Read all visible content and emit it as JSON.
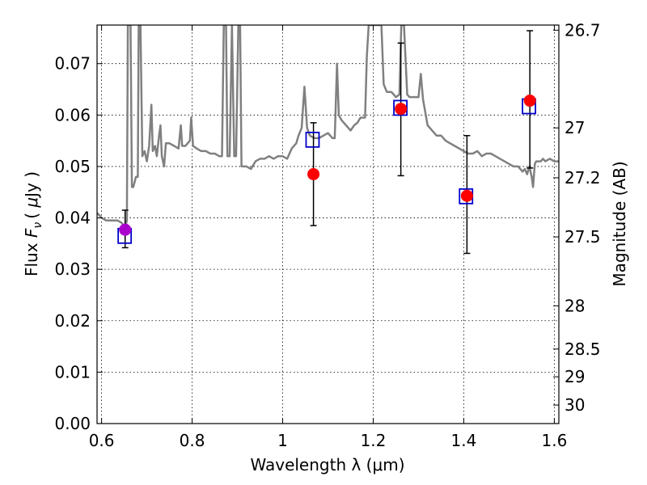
{
  "chart_data": {
    "type": "scatter",
    "xlabel": "Wavelength  λ (μm)",
    "ylabel": "Flux  Fν  ( μJy )",
    "ylabel_parts": {
      "prefix": "Flux ",
      "symbol": "F",
      "subscript": "ν",
      "unit_open": "( ",
      "unit_mu": "μ",
      "unit_rest": "Jy )"
    },
    "ylabel_right": "Magnitude (AB)",
    "xlim": [
      0.59,
      1.61
    ],
    "ylim": [
      0.0,
      0.0775
    ],
    "grid": true,
    "x_ticks": [
      {
        "value": 0.6,
        "label": ""
      },
      {
        "value": 0.8,
        "label": "0.8"
      },
      {
        "value": 1.0,
        "label": "1"
      },
      {
        "value": 1.2,
        "label": "1.2"
      },
      {
        "value": 1.4,
        "label": "1.4"
      },
      {
        "value": 1.6,
        "label": "1.6"
      }
    ],
    "x_tick_first_label": "0.6",
    "y_ticks": [
      "0.00",
      "0.01",
      "0.02",
      "0.03",
      "0.04",
      "0.05",
      "0.06",
      "0.07"
    ],
    "y_tick_values": [
      0.0,
      0.01,
      0.02,
      0.03,
      0.04,
      0.05,
      0.06,
      0.07
    ],
    "mag_ticks": [
      {
        "label": "26.7",
        "flux": 0.0765
      },
      {
        "label": "27",
        "flux": 0.0575
      },
      {
        "label": "27.2",
        "flux": 0.0478
      },
      {
        "label": "27.5",
        "flux": 0.0363
      },
      {
        "label": "28",
        "flux": 0.0229
      },
      {
        "label": "28.5",
        "flux": 0.0145
      },
      {
        "label": "29",
        "flux": 0.0091
      },
      {
        "label": "30",
        "flux": 0.0036
      }
    ],
    "colors": {
      "spectrum": "#808080",
      "observed": "#ff0000",
      "model": "#0000cc",
      "first_point": "#aa00cc",
      "errorbar": "#000000",
      "grid": "#000000"
    },
    "series": [
      {
        "kind": "template_spectrum",
        "points": [
          [
            0.59,
            0.041
          ],
          [
            0.6,
            0.04
          ],
          [
            0.61,
            0.0395
          ],
          [
            0.62,
            0.0395
          ],
          [
            0.635,
            0.0395
          ],
          [
            0.645,
            0.039
          ],
          [
            0.652,
            0.038
          ],
          [
            0.656,
            0.0395
          ],
          [
            0.658,
            0.0775
          ],
          [
            0.664,
            0.0775
          ],
          [
            0.667,
            0.046
          ],
          [
            0.67,
            0.046
          ],
          [
            0.673,
            0.047
          ],
          [
            0.676,
            0.048
          ],
          [
            0.68,
            0.048
          ],
          [
            0.682,
            0.0775
          ],
          [
            0.686,
            0.0775
          ],
          [
            0.69,
            0.052
          ],
          [
            0.695,
            0.053
          ],
          [
            0.7,
            0.051
          ],
          [
            0.705,
            0.054
          ],
          [
            0.71,
            0.062
          ],
          [
            0.713,
            0.053
          ],
          [
            0.718,
            0.054
          ],
          [
            0.722,
            0.052
          ],
          [
            0.727,
            0.056
          ],
          [
            0.73,
            0.058
          ],
          [
            0.733,
            0.052
          ],
          [
            0.738,
            0.05
          ],
          [
            0.742,
            0.0545
          ],
          [
            0.75,
            0.0545
          ],
          [
            0.76,
            0.054
          ],
          [
            0.77,
            0.0535
          ],
          [
            0.775,
            0.058
          ],
          [
            0.778,
            0.054
          ],
          [
            0.785,
            0.054
          ],
          [
            0.795,
            0.055
          ],
          [
            0.798,
            0.0595
          ],
          [
            0.802,
            0.054
          ],
          [
            0.81,
            0.0535
          ],
          [
            0.82,
            0.053
          ],
          [
            0.83,
            0.053
          ],
          [
            0.84,
            0.0525
          ],
          [
            0.85,
            0.0525
          ],
          [
            0.86,
            0.052
          ],
          [
            0.866,
            0.052
          ],
          [
            0.87,
            0.0775
          ],
          [
            0.875,
            0.0775
          ],
          [
            0.878,
            0.052
          ],
          [
            0.883,
            0.052
          ],
          [
            0.888,
            0.0775
          ],
          [
            0.893,
            0.052
          ],
          [
            0.897,
            0.052
          ],
          [
            0.902,
            0.0775
          ],
          [
            0.906,
            0.0775
          ],
          [
            0.909,
            0.05
          ],
          [
            0.92,
            0.05
          ],
          [
            0.93,
            0.0495
          ],
          [
            0.94,
            0.051
          ],
          [
            0.95,
            0.0515
          ],
          [
            0.96,
            0.0515
          ],
          [
            0.97,
            0.052
          ],
          [
            0.98,
            0.0515
          ],
          [
            0.99,
            0.052
          ],
          [
            1.0,
            0.052
          ],
          [
            1.01,
            0.0515
          ],
          [
            1.02,
            0.0535
          ],
          [
            1.03,
            0.0545
          ],
          [
            1.035,
            0.056
          ],
          [
            1.042,
            0.0575
          ],
          [
            1.048,
            0.0655
          ],
          [
            1.054,
            0.0575
          ],
          [
            1.06,
            0.056
          ],
          [
            1.07,
            0.0555
          ],
          [
            1.08,
            0.0555
          ],
          [
            1.09,
            0.056
          ],
          [
            1.1,
            0.0565
          ],
          [
            1.11,
            0.0555
          ],
          [
            1.115,
            0.0555
          ],
          [
            1.12,
            0.07
          ],
          [
            1.124,
            0.06
          ],
          [
            1.13,
            0.059
          ],
          [
            1.14,
            0.058
          ],
          [
            1.15,
            0.057
          ],
          [
            1.158,
            0.058
          ],
          [
            1.165,
            0.0585
          ],
          [
            1.172,
            0.0595
          ],
          [
            1.182,
            0.0595
          ],
          [
            1.186,
            0.0715
          ],
          [
            1.19,
            0.0775
          ],
          [
            1.2,
            0.0775
          ],
          [
            1.21,
            0.0775
          ],
          [
            1.218,
            0.0775
          ],
          [
            1.223,
            0.066
          ],
          [
            1.23,
            0.0645
          ],
          [
            1.24,
            0.0645
          ],
          [
            1.25,
            0.0635
          ],
          [
            1.258,
            0.064
          ],
          [
            1.262,
            0.0775
          ],
          [
            1.268,
            0.0775
          ],
          [
            1.275,
            0.064
          ],
          [
            1.28,
            0.0635
          ],
          [
            1.29,
            0.0635
          ],
          [
            1.3,
            0.0635
          ],
          [
            1.305,
            0.068
          ],
          [
            1.31,
            0.063
          ],
          [
            1.32,
            0.058
          ],
          [
            1.33,
            0.057
          ],
          [
            1.34,
            0.056
          ],
          [
            1.35,
            0.056
          ],
          [
            1.36,
            0.055
          ],
          [
            1.37,
            0.0545
          ],
          [
            1.38,
            0.054
          ],
          [
            1.39,
            0.0535
          ],
          [
            1.4,
            0.053
          ],
          [
            1.41,
            0.0525
          ],
          [
            1.42,
            0.0525
          ],
          [
            1.43,
            0.053
          ],
          [
            1.44,
            0.052
          ],
          [
            1.45,
            0.0525
          ],
          [
            1.46,
            0.0525
          ],
          [
            1.47,
            0.052
          ],
          [
            1.48,
            0.0515
          ],
          [
            1.49,
            0.051
          ],
          [
            1.5,
            0.0505
          ],
          [
            1.51,
            0.05
          ],
          [
            1.52,
            0.05
          ],
          [
            1.53,
            0.049
          ],
          [
            1.535,
            0.0495
          ],
          [
            1.54,
            0.0485
          ],
          [
            1.545,
            0.05
          ],
          [
            1.55,
            0.048
          ],
          [
            1.553,
            0.046
          ],
          [
            1.557,
            0.0505
          ],
          [
            1.56,
            0.051
          ],
          [
            1.57,
            0.051
          ],
          [
            1.575,
            0.0515
          ],
          [
            1.58,
            0.051
          ],
          [
            1.59,
            0.0515
          ],
          [
            1.6,
            0.051
          ],
          [
            1.61,
            0.051
          ]
        ]
      },
      {
        "kind": "model_fluxes",
        "marker": "open-square",
        "points": [
          {
            "x": 0.651,
            "y": 0.0365
          },
          {
            "x": 1.066,
            "y": 0.0552
          },
          {
            "x": 1.26,
            "y": 0.0614
          },
          {
            "x": 1.405,
            "y": 0.0442
          },
          {
            "x": 1.544,
            "y": 0.0617
          }
        ]
      },
      {
        "kind": "observed_fluxes",
        "marker": "filled-circle",
        "points": [
          {
            "x": 0.652,
            "y": 0.0377,
            "yerr_low": 0.0342,
            "yerr_high": 0.0415
          },
          {
            "x": 1.068,
            "y": 0.0485,
            "yerr_low": 0.0385,
            "yerr_high": 0.0585
          },
          {
            "x": 1.261,
            "y": 0.0612,
            "yerr_low": 0.0482,
            "yerr_high": 0.074
          },
          {
            "x": 1.407,
            "y": 0.0443,
            "yerr_low": 0.0331,
            "yerr_high": 0.056
          },
          {
            "x": 1.546,
            "y": 0.0628,
            "yerr_low": 0.0497,
            "yerr_high": 0.0764
          }
        ]
      }
    ]
  }
}
